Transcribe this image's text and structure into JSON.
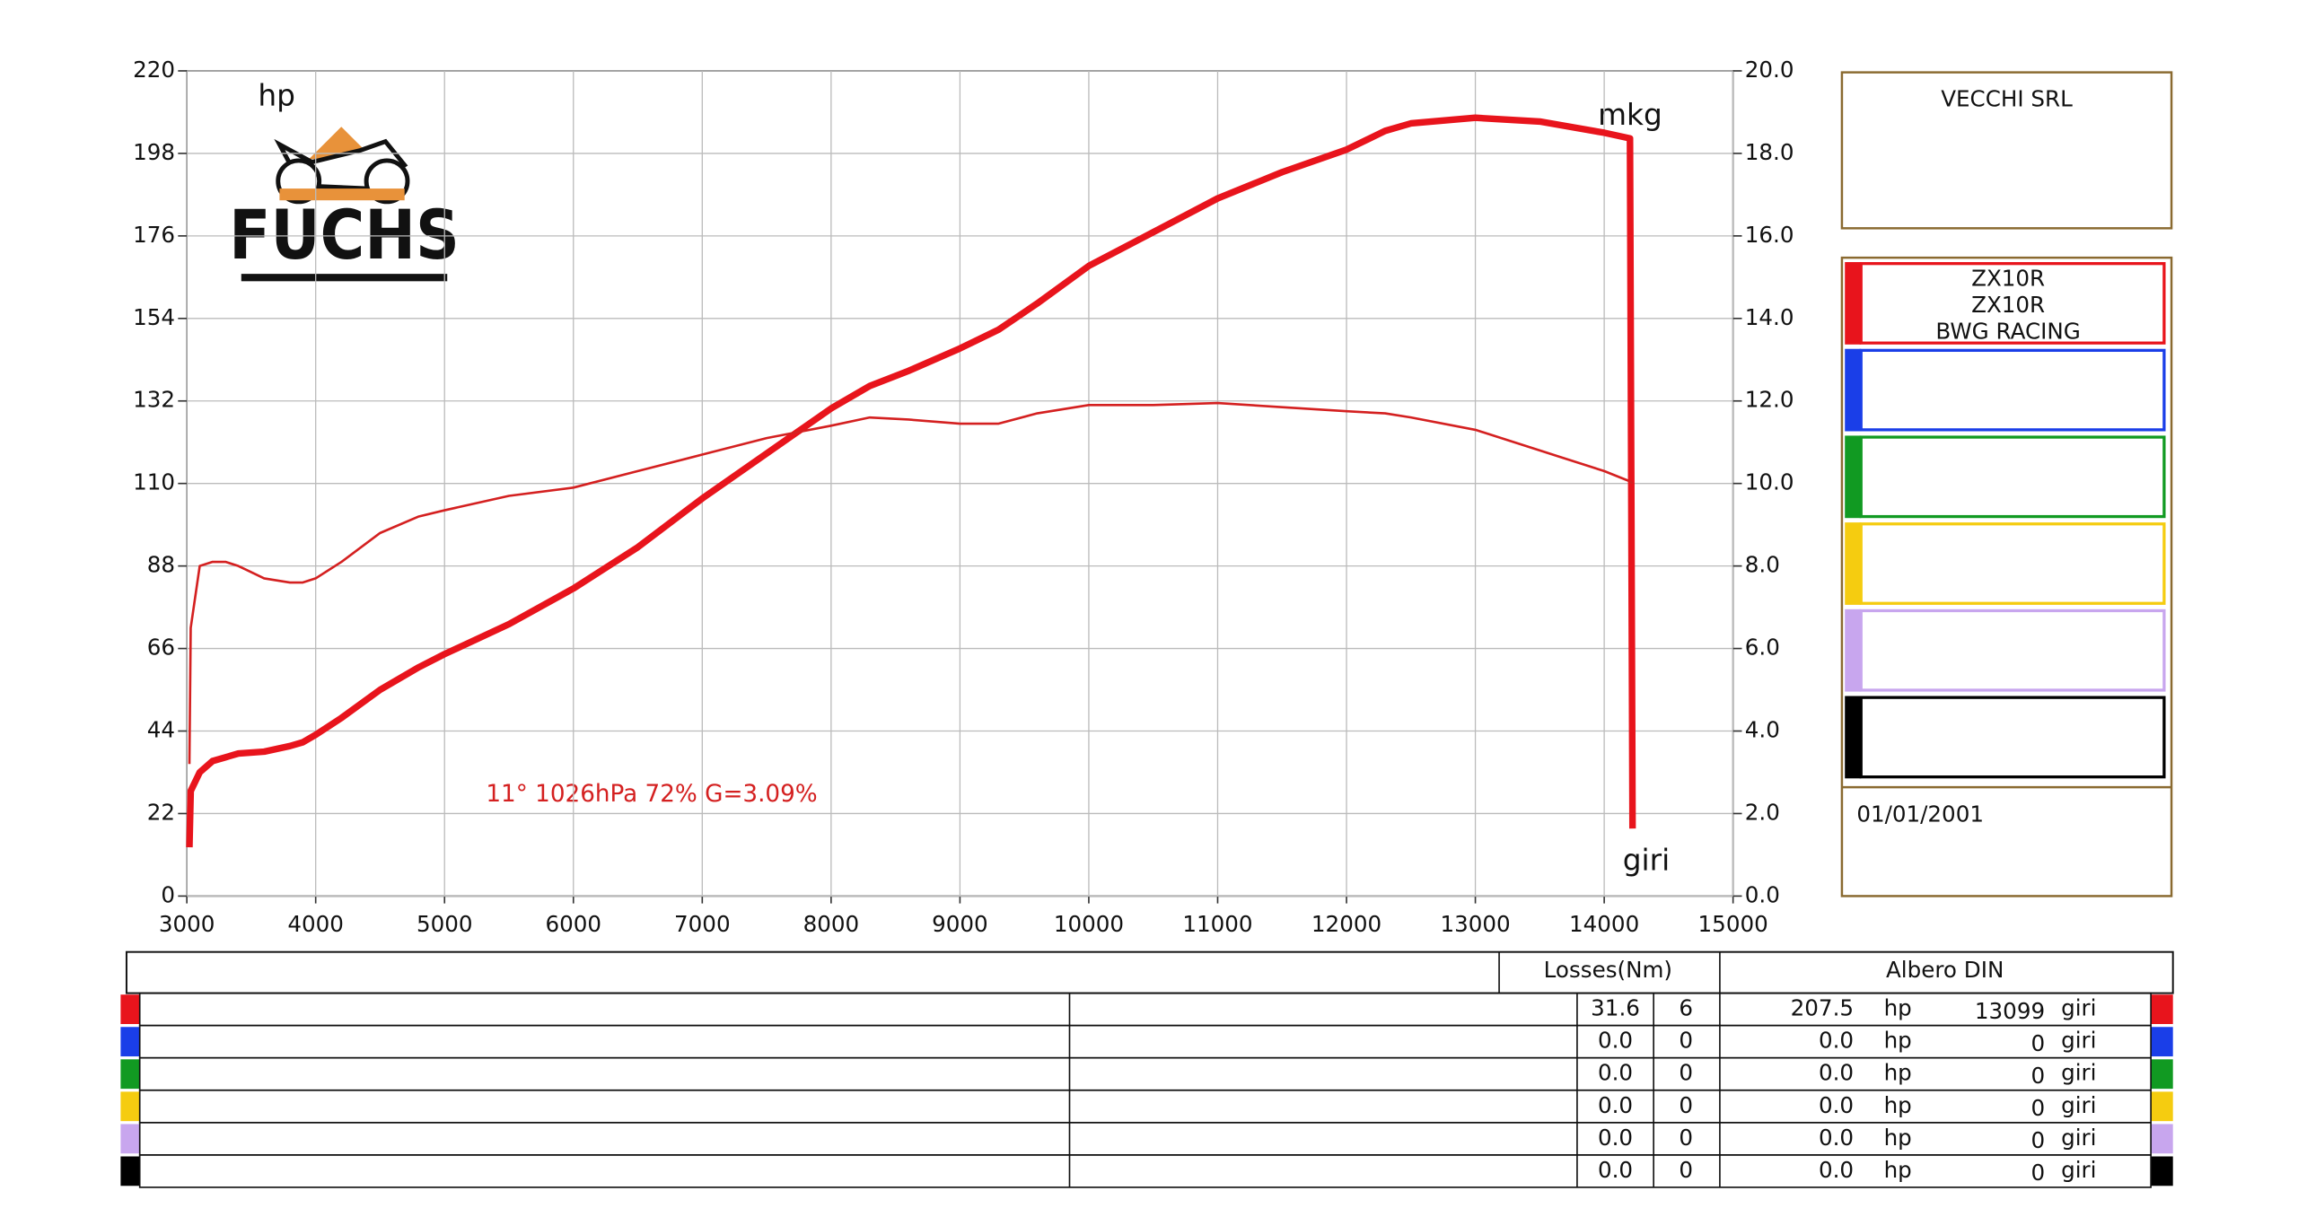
{
  "chart_data": {
    "type": "line",
    "x_label": "giri",
    "y_label": "hp",
    "y2_label": "mkg",
    "annotation": "11°  1026hPa  72%    G=3.09%",
    "x": [
      3020,
      3030,
      3100,
      3200,
      3300,
      3400,
      3600,
      3800,
      3900,
      4000,
      4200,
      4500,
      4800,
      5000,
      5500,
      6000,
      6500,
      7000,
      7500,
      8000,
      8300,
      8600,
      9000,
      9300,
      9600,
      10000,
      10500,
      11000,
      11500,
      12000,
      12300,
      12500,
      13000,
      13500,
      14000,
      14200,
      14220
    ],
    "series": [
      {
        "name": "hp",
        "color": "#e8141c",
        "values": [
          13,
          28,
          33,
          36,
          37,
          38,
          38.5,
          40,
          41,
          43,
          47.5,
          55,
          61,
          64.5,
          72.5,
          82,
          93,
          106,
          118,
          130,
          136,
          140,
          146,
          151,
          158,
          168,
          177,
          186,
          193,
          199,
          204,
          206,
          207.5,
          206.5,
          203.5,
          202,
          18
        ]
      },
      {
        "name": "mkg",
        "color": "#d42020",
        "axis": "y2",
        "values": [
          3.2,
          6.5,
          8.0,
          8.1,
          8.1,
          8.0,
          7.7,
          7.6,
          7.6,
          7.7,
          8.1,
          8.8,
          9.2,
          9.35,
          9.7,
          9.9,
          10.3,
          10.7,
          11.1,
          11.4,
          11.6,
          11.55,
          11.45,
          11.45,
          11.7,
          11.9,
          11.9,
          11.95,
          11.85,
          11.75,
          11.7,
          11.6,
          11.3,
          10.8,
          10.3,
          10.05,
          10.0
        ]
      }
    ],
    "xlim": [
      3000,
      15000
    ],
    "xticks": [
      3000,
      4000,
      5000,
      6000,
      7000,
      8000,
      9000,
      10000,
      11000,
      12000,
      13000,
      14000,
      15000
    ],
    "ylim": [
      0,
      220
    ],
    "yticks": [
      0,
      22,
      44,
      66,
      88,
      110,
      132,
      154,
      176,
      198,
      220
    ],
    "y2lim": [
      0,
      20
    ],
    "y2ticks": [
      {
        "value": 0,
        "label": "0.0"
      },
      {
        "value": 2,
        "label": "2.0"
      },
      {
        "value": 4,
        "label": "4.0"
      },
      {
        "value": 6,
        "label": "6.0"
      },
      {
        "value": 8,
        "label": "8.0"
      },
      {
        "value": 10,
        "label": "10.0"
      },
      {
        "value": 12,
        "label": "12.0"
      },
      {
        "value": 14,
        "label": "14.0"
      },
      {
        "value": 16,
        "label": "16.0"
      },
      {
        "value": 18,
        "label": "18.0"
      },
      {
        "value": 20,
        "label": "20.0"
      }
    ],
    "grid": true
  },
  "logo": "FUCHS",
  "panel": {
    "company": "VECCHI SRL",
    "date": "01/01/2001",
    "entries": [
      {
        "color": "#e8141c",
        "lines": [
          "ZX10R",
          "ZX10R",
          "BWG RACING"
        ]
      },
      {
        "color": "#1a3ee8"
      },
      {
        "color": "#119a22"
      },
      {
        "color": "#f5cc10"
      },
      {
        "color": "#c8a6ee"
      },
      {
        "color": "#000000"
      }
    ]
  },
  "table": {
    "losses_header": "Losses(Nm)",
    "power_header": "Albero DIN",
    "rows": [
      {
        "color": "#e8141c",
        "loss": "31.6",
        "loss2": "6",
        "power": "207.5",
        "power_unit": "hp",
        "rpm": "13099",
        "rpm_unit": "giri"
      },
      {
        "color": "#1a3ee8",
        "loss": "0.0",
        "loss2": "0",
        "power": "0.0",
        "power_unit": "hp",
        "rpm": "0",
        "rpm_unit": "giri"
      },
      {
        "color": "#119a22",
        "loss": "0.0",
        "loss2": "0",
        "power": "0.0",
        "power_unit": "hp",
        "rpm": "0",
        "rpm_unit": "giri"
      },
      {
        "color": "#f5cc10",
        "loss": "0.0",
        "loss2": "0",
        "power": "0.0",
        "power_unit": "hp",
        "rpm": "0",
        "rpm_unit": "giri"
      },
      {
        "color": "#c8a6ee",
        "loss": "0.0",
        "loss2": "0",
        "power": "0.0",
        "power_unit": "hp",
        "rpm": "0",
        "rpm_unit": "giri"
      },
      {
        "color": "#000000",
        "loss": "0.0",
        "loss2": "0",
        "power": "0.0",
        "power_unit": "hp",
        "rpm": "0",
        "rpm_unit": "giri"
      }
    ]
  }
}
